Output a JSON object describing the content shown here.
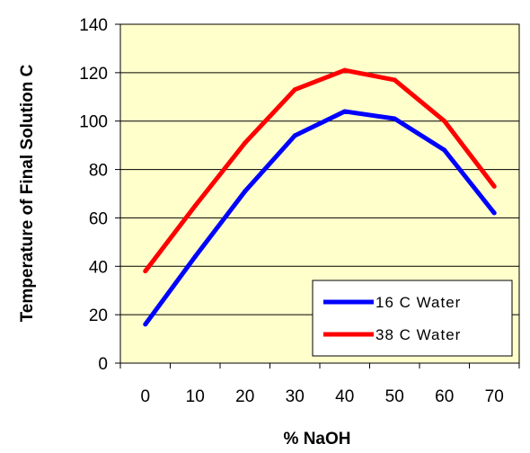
{
  "chart_data": {
    "type": "line",
    "xlabel": "% NaOH",
    "ylabel": "Temperature of Final Solution C",
    "x": [
      0,
      10,
      20,
      30,
      40,
      50,
      60,
      70
    ],
    "xlim": [
      -5,
      75
    ],
    "ylim": [
      0,
      140
    ],
    "xticks": [
      0,
      10,
      20,
      30,
      40,
      50,
      60,
      70
    ],
    "yticks": [
      0,
      20,
      40,
      60,
      80,
      100,
      120,
      140
    ],
    "grid": "horizontal",
    "legend_position": "bottom-right",
    "plot_background": "#FFFFCC",
    "series": [
      {
        "name": "16 C Water",
        "color": "#0000FF",
        "values": [
          16,
          44,
          71,
          94,
          104,
          101,
          88,
          62
        ]
      },
      {
        "name": "38 C Water",
        "color": "#FF0000",
        "values": [
          38,
          65,
          91,
          113,
          121,
          117,
          100,
          73
        ]
      }
    ]
  }
}
